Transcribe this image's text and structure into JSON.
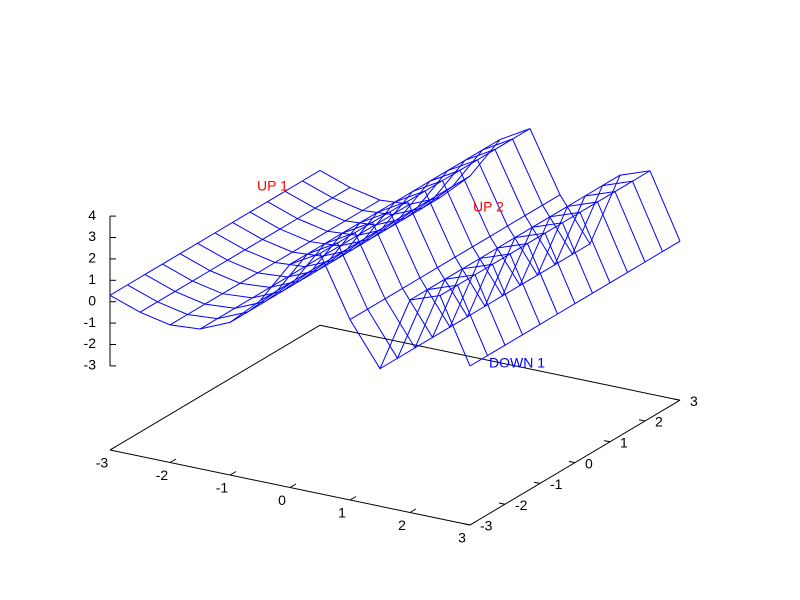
{
  "chart_data": {
    "type": "surface",
    "color": "#0000ff",
    "x": [
      -3,
      -2.5,
      -2,
      -1.5,
      -1,
      -0.5,
      0,
      0.5,
      1,
      1.5,
      2,
      2.5,
      3
    ],
    "y": [
      -3,
      -2.5,
      -2,
      -1.5,
      -1,
      -0.5,
      0,
      0.5,
      1,
      1.5,
      2,
      2.5,
      3
    ],
    "z": [
      [
        0.3,
        -0.2,
        -0.5,
        -0.4,
        0.2,
        1.5,
        3.5,
        4.3,
        1.5,
        -0.5,
        3,
        3.5,
        0.5
      ],
      [
        0.3,
        -0.2,
        -0.5,
        -0.4,
        0.2,
        1.5,
        3.5,
        4.3,
        1.5,
        -0.5,
        3,
        3.5,
        0.5
      ],
      [
        0.3,
        -0.2,
        -0.5,
        -0.4,
        0.2,
        1.5,
        3.5,
        4.3,
        1.5,
        -0.5,
        3,
        3.5,
        0.5
      ],
      [
        0.3,
        -0.2,
        -0.5,
        -0.4,
        0.2,
        1.5,
        3.5,
        4.3,
        1.5,
        -0.5,
        3,
        3.5,
        0.5
      ],
      [
        0.3,
        -0.2,
        -0.5,
        -0.4,
        0.2,
        1.5,
        3.5,
        4.3,
        1.5,
        -0.5,
        3,
        3.5,
        0.5
      ],
      [
        0.3,
        -0.2,
        -0.5,
        -0.4,
        0.2,
        1.5,
        3.5,
        4.3,
        1.5,
        -0.5,
        3,
        3.5,
        0.5
      ],
      [
        0.3,
        -0.2,
        -0.5,
        -0.4,
        0.2,
        1.5,
        3.5,
        4.3,
        1.5,
        -0.5,
        3,
        3.5,
        0.5
      ],
      [
        0.3,
        -0.2,
        -0.5,
        -0.4,
        0.2,
        1.5,
        3.5,
        4.3,
        1.5,
        -0.5,
        3,
        3.5,
        0.5
      ],
      [
        0.3,
        -0.2,
        -0.5,
        -0.4,
        0.2,
        1.5,
        3.5,
        4.3,
        1.5,
        -0.5,
        3,
        3.5,
        0.5
      ],
      [
        0.3,
        -0.2,
        -0.5,
        -0.4,
        0.2,
        1.5,
        3.5,
        4.3,
        1.5,
        -0.5,
        3,
        3.5,
        0.5
      ],
      [
        0.3,
        -0.2,
        -0.5,
        -0.4,
        0.2,
        1.5,
        3.5,
        4.3,
        1.5,
        -0.5,
        3,
        3.5,
        0.5
      ],
      [
        0.3,
        -0.2,
        -0.5,
        -0.4,
        0.2,
        1.5,
        3.5,
        4.3,
        1.5,
        -0.5,
        3,
        3.5,
        0.5
      ],
      [
        0.3,
        -0.2,
        -0.5,
        -0.4,
        0.2,
        1.5,
        3.5,
        4.3,
        1.5,
        -0.5,
        3,
        3.5,
        0.5
      ]
    ],
    "xlim": [
      -3,
      3
    ],
    "xticks": [
      -3,
      -2,
      -1,
      0,
      1,
      2,
      3
    ],
    "ylim": [
      -3,
      3
    ],
    "yticks": [
      -3,
      -2,
      -1,
      0,
      1,
      2,
      3
    ],
    "zlim": [
      -3,
      4
    ],
    "zticks": [
      -3,
      -2,
      -1,
      0,
      1,
      2,
      3,
      4
    ],
    "annotations": [
      {
        "text": "UP 1",
        "color": "#ff0000"
      },
      {
        "text": "UP 2",
        "color": "#ff0000"
      },
      {
        "text": "DOWN 1",
        "color": "#0000ff"
      }
    ]
  }
}
